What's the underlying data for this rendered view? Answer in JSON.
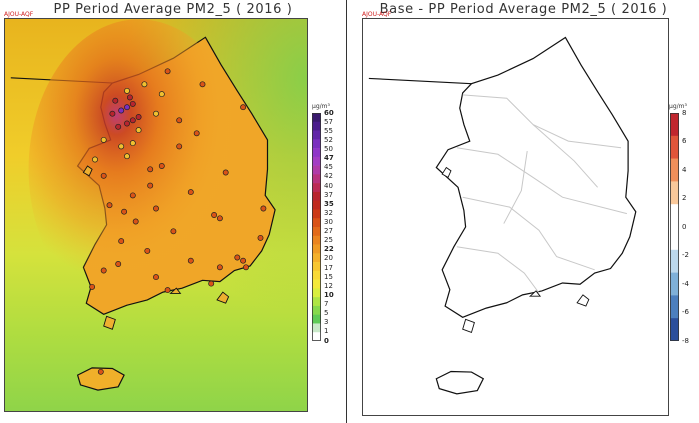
{
  "left_panel": {
    "title": "PP Period Average PM2_5 ( 2016 )",
    "tag": "AJOU-AQF",
    "unit": "μg/m³",
    "colorbar": {
      "labels": [
        "60",
        "57",
        "55",
        "52",
        "50",
        "47",
        "45",
        "42",
        "40",
        "37",
        "35",
        "32",
        "30",
        "27",
        "25",
        "22",
        "20",
        "17",
        "15",
        "12",
        "10",
        "7",
        "5",
        "3",
        "1",
        "0"
      ],
      "bold_labels": [
        "60",
        "47",
        "35",
        "22",
        "10",
        "0"
      ],
      "colors": [
        "#3a1a6e",
        "#4b1c8c",
        "#6226a8",
        "#7a2fbf",
        "#8f35c8",
        "#a33cc4",
        "#b03aa8",
        "#b8327e",
        "#bb2a55",
        "#b8242e",
        "#c02a1e",
        "#cc3b17",
        "#d95317",
        "#e26a1a",
        "#ea8420",
        "#ef9a24",
        "#f4b02a",
        "#f7c630",
        "#f9d936",
        "#f3e93a",
        "#d9ef3e",
        "#aee545",
        "#86d94d",
        "#5fcb57",
        "#c9e9c9",
        "#ffffff"
      ]
    }
  },
  "right_panel": {
    "title": "Base - PP Period Average PM2_5 ( 2016 )",
    "tag": "AJOU-AQF",
    "unit": "μg/m³",
    "colorbar": {
      "labels": [
        "8",
        "6",
        "4",
        "2",
        "0",
        "-2",
        "-4",
        "-6",
        "-8"
      ],
      "colors": [
        "#c0262e",
        "#e0553a",
        "#f08f5a",
        "#f9c89a",
        "#ffffff",
        "#ffffff",
        "#bcd8ec",
        "#7fb0d8",
        "#4c7fbe",
        "#2b4f9c"
      ]
    }
  },
  "sites": [
    [
      37.55,
      127.0
    ],
    [
      37.5,
      126.9
    ],
    [
      37.6,
      127.1
    ],
    [
      37.45,
      126.75
    ],
    [
      37.3,
      127.0
    ],
    [
      37.4,
      127.2
    ],
    [
      37.7,
      127.05
    ],
    [
      37.8,
      127.0
    ],
    [
      37.25,
      126.85
    ],
    [
      37.65,
      126.8
    ],
    [
      37.35,
      127.1
    ],
    [
      37.9,
      127.3
    ],
    [
      37.2,
      127.2
    ],
    [
      37.0,
      127.1
    ],
    [
      36.8,
      127.0
    ],
    [
      36.6,
      127.4
    ],
    [
      36.35,
      127.4
    ],
    [
      36.5,
      126.6
    ],
    [
      36.75,
      126.45
    ],
    [
      36.95,
      126.9
    ],
    [
      37.45,
      127.5
    ],
    [
      37.75,
      127.6
    ],
    [
      37.9,
      128.3
    ],
    [
      37.55,
      129.0
    ],
    [
      37.35,
      127.9
    ],
    [
      37.15,
      128.2
    ],
    [
      36.95,
      127.9
    ],
    [
      36.65,
      127.6
    ],
    [
      36.2,
      127.1
    ],
    [
      35.95,
      126.95
    ],
    [
      35.8,
      127.15
    ],
    [
      35.5,
      126.9
    ],
    [
      35.15,
      126.85
    ],
    [
      35.05,
      126.6
    ],
    [
      34.8,
      126.4
    ],
    [
      34.75,
      127.7
    ],
    [
      34.95,
      127.5
    ],
    [
      35.2,
      128.1
    ],
    [
      35.1,
      128.6
    ],
    [
      35.2,
      129.0
    ],
    [
      35.1,
      129.05
    ],
    [
      35.25,
      128.9
    ],
    [
      35.55,
      129.3
    ],
    [
      35.85,
      128.6
    ],
    [
      35.9,
      128.5
    ],
    [
      36.0,
      129.35
    ],
    [
      36.25,
      128.1
    ],
    [
      36.55,
      128.7
    ],
    [
      36.0,
      127.5
    ],
    [
      35.35,
      127.35
    ],
    [
      35.65,
      127.8
    ],
    [
      36.05,
      126.7
    ],
    [
      33.5,
      126.55
    ],
    [
      34.85,
      128.45
    ],
    [
      38.1,
      127.7
    ],
    [
      37.05,
      126.6
    ]
  ]
}
